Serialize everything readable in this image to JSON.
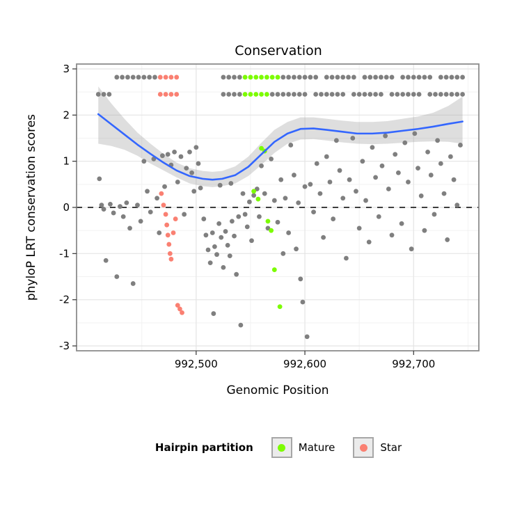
{
  "chart_data": {
    "type": "scatter",
    "title": "Conservation",
    "xlabel": "Genomic Position",
    "ylabel": "phyloP LRT conservation scores",
    "xlim": [
      992390,
      992760
    ],
    "ylim": [
      -3,
      3
    ],
    "x_ticks": [
      992500,
      992600,
      992700
    ],
    "x_tick_labels": [
      "992,500",
      "992,600",
      "992,700"
    ],
    "y_ticks": [
      -3,
      -2,
      -1,
      0,
      1,
      2,
      3
    ],
    "y_tick_labels": [
      "-3",
      "-2",
      "-1",
      "0",
      "1",
      "2",
      "3"
    ],
    "grid": {
      "major": "#E4E4E4",
      "minor": "#F2F2F2"
    },
    "panel_border": "#8C8C8C",
    "hline": {
      "y": 0,
      "style": "dashed",
      "color": "#000000"
    },
    "legend": {
      "title": "Hairpin partition",
      "entries": [
        {
          "label": "Mature",
          "color": "#7CFC00"
        },
        {
          "label": "Star",
          "color": "#FA8072"
        }
      ]
    },
    "series": [
      {
        "name": "Other",
        "color": "#7F7F7F",
        "rows": [
          {
            "y": 2.82,
            "x": [
              992427,
              992432,
              992437,
              992442,
              992447,
              992452,
              992457,
              992462,
              992525,
              992530,
              992535,
              992540,
              992580,
              992585,
              992590,
              992595,
              992600,
              992605,
              992610,
              992620,
              992625,
              992630,
              992635,
              992640,
              992645,
              992655,
              992660,
              992665,
              992670,
              992675,
              992680,
              992690,
              992695,
              992700,
              992705,
              992710,
              992715,
              992725,
              992730,
              992735,
              992740,
              992745
            ]
          },
          {
            "y": 2.45,
            "x": [
              992410,
              992415,
              992420,
              992525,
              992530,
              992535,
              992540,
              992570,
              992575,
              992580,
              992585,
              992590,
              992595,
              992600,
              992610,
              992615,
              992620,
              992625,
              992630,
              992635,
              992645,
              992650,
              992655,
              992660,
              992665,
              992670,
              992680,
              992685,
              992690,
              992695,
              992700,
              992705,
              992715,
              992720,
              992725,
              992730,
              992735,
              992740,
              992745
            ]
          }
        ],
        "points": [
          [
            992411,
            0.62
          ],
          [
            992413,
            0.05
          ],
          [
            992415,
            -0.04
          ],
          [
            992417,
            -1.15
          ],
          [
            992421,
            0.07
          ],
          [
            992424,
            -0.12
          ],
          [
            992427,
            -1.5
          ],
          [
            992430,
            0.02
          ],
          [
            992433,
            -0.2
          ],
          [
            992436,
            0.1
          ],
          [
            992439,
            -0.45
          ],
          [
            992442,
            -1.65
          ],
          [
            992446,
            0.05
          ],
          [
            992449,
            -0.3
          ],
          [
            992452,
            1.0
          ],
          [
            992455,
            0.35
          ],
          [
            992458,
            -0.1
          ],
          [
            992461,
            1.05
          ],
          [
            992464,
            0.2
          ],
          [
            992466,
            -0.55
          ],
          [
            992469,
            1.12
          ],
          [
            992471,
            0.45
          ],
          [
            992474,
            1.15
          ],
          [
            992477,
            0.92
          ],
          [
            992480,
            1.2
          ],
          [
            992483,
            0.55
          ],
          [
            992486,
            1.1
          ],
          [
            992489,
            -0.15
          ],
          [
            992491,
            0.85
          ],
          [
            992494,
            1.2
          ],
          [
            992496,
            0.75
          ],
          [
            992498,
            0.35
          ],
          [
            992500,
            1.3
          ],
          [
            992502,
            0.95
          ],
          [
            992504,
            0.42
          ],
          [
            992507,
            -0.25
          ],
          [
            992509,
            -0.6
          ],
          [
            992511,
            -0.92
          ],
          [
            992513,
            -1.2
          ],
          [
            992515,
            -0.55
          ],
          [
            992516,
            -2.3
          ],
          [
            992517,
            -0.85
          ],
          [
            992519,
            -1.02
          ],
          [
            992521,
            -0.35
          ],
          [
            992522,
            0.48
          ],
          [
            992523,
            -0.65
          ],
          [
            992525,
            -1.3
          ],
          [
            992527,
            -0.52
          ],
          [
            992529,
            -0.82
          ],
          [
            992531,
            -1.05
          ],
          [
            992532,
            0.52
          ],
          [
            992533,
            -0.3
          ],
          [
            992535,
            -0.62
          ],
          [
            992537,
            -1.45
          ],
          [
            992539,
            -0.2
          ],
          [
            992541,
            -2.55
          ],
          [
            992543,
            0.3
          ],
          [
            992545,
            -0.15
          ],
          [
            992547,
            -0.42
          ],
          [
            992549,
            0.12
          ],
          [
            992551,
            -0.72
          ],
          [
            992553,
            0.26
          ],
          [
            992556,
            0.4
          ],
          [
            992558,
            -0.2
          ],
          [
            992560,
            0.9
          ],
          [
            992563,
            0.3
          ],
          [
            992566,
            -0.45
          ],
          [
            992569,
            1.05
          ],
          [
            992572,
            0.15
          ],
          [
            992575,
            -0.32
          ],
          [
            992578,
            0.6
          ],
          [
            992580,
            -1.0
          ],
          [
            992582,
            0.2
          ],
          [
            992585,
            -0.55
          ],
          [
            992587,
            1.35
          ],
          [
            992590,
            0.7
          ],
          [
            992592,
            -0.9
          ],
          [
            992594,
            0.1
          ],
          [
            992596,
            -1.55
          ],
          [
            992598,
            -2.05
          ],
          [
            992600,
            0.45
          ],
          [
            992602,
            -2.8
          ],
          [
            992605,
            0.5
          ],
          [
            992608,
            -0.1
          ],
          [
            992611,
            0.95
          ],
          [
            992614,
            0.3
          ],
          [
            992617,
            -0.65
          ],
          [
            992620,
            1.1
          ],
          [
            992623,
            0.55
          ],
          [
            992626,
            -0.25
          ],
          [
            992629,
            1.45
          ],
          [
            992632,
            0.8
          ],
          [
            992635,
            0.2
          ],
          [
            992638,
            -1.1
          ],
          [
            992641,
            0.6
          ],
          [
            992644,
            1.5
          ],
          [
            992647,
            0.35
          ],
          [
            992650,
            -0.45
          ],
          [
            992653,
            1.0
          ],
          [
            992656,
            0.15
          ],
          [
            992659,
            -0.75
          ],
          [
            992662,
            1.3
          ],
          [
            992665,
            0.65
          ],
          [
            992668,
            -0.2
          ],
          [
            992671,
            0.9
          ],
          [
            992674,
            1.55
          ],
          [
            992677,
            0.4
          ],
          [
            992680,
            -0.6
          ],
          [
            992683,
            1.15
          ],
          [
            992686,
            0.75
          ],
          [
            992689,
            -0.35
          ],
          [
            992692,
            1.4
          ],
          [
            992695,
            0.55
          ],
          [
            992698,
            -0.9
          ],
          [
            992701,
            1.6
          ],
          [
            992704,
            0.85
          ],
          [
            992707,
            0.25
          ],
          [
            992710,
            -0.5
          ],
          [
            992713,
            1.2
          ],
          [
            992716,
            0.7
          ],
          [
            992719,
            -0.15
          ],
          [
            992722,
            1.45
          ],
          [
            992725,
            0.95
          ],
          [
            992728,
            0.3
          ],
          [
            992731,
            -0.7
          ],
          [
            992734,
            1.1
          ],
          [
            992737,
            0.6
          ],
          [
            992740,
            0.05
          ],
          [
            992743,
            1.35
          ]
        ]
      },
      {
        "name": "Mature",
        "color": "#7CFC00",
        "rows": [
          {
            "y": 2.82,
            "x": [
              992545,
              992550,
              992555,
              992560,
              992565,
              992570,
              992575
            ]
          },
          {
            "y": 2.45,
            "x": [
              992545,
              992550,
              992555,
              992560,
              992565
            ]
          }
        ],
        "points": [
          [
            992553,
            0.35
          ],
          [
            992557,
            0.18
          ],
          [
            992560,
            1.28
          ],
          [
            992563,
            1.22
          ],
          [
            992566,
            -0.3
          ],
          [
            992569,
            -0.5
          ],
          [
            992572,
            -1.35
          ],
          [
            992577,
            -2.15
          ]
        ]
      },
      {
        "name": "Star",
        "color": "#FA8072",
        "rows": [
          {
            "y": 2.82,
            "x": [
              992467,
              992472,
              992477,
              992482
            ]
          },
          {
            "y": 2.45,
            "x": [
              992467,
              992472,
              992477,
              992482
            ]
          }
        ],
        "points": [
          [
            992468,
            0.3
          ],
          [
            992470,
            0.05
          ],
          [
            992472,
            -0.15
          ],
          [
            992473,
            -0.38
          ],
          [
            992474,
            -0.6
          ],
          [
            992475,
            -0.8
          ],
          [
            992476,
            -1.0
          ],
          [
            992477,
            -1.12
          ],
          [
            992479,
            -0.55
          ],
          [
            992481,
            -0.25
          ],
          [
            992483,
            -2.12
          ],
          [
            992485,
            -2.2
          ],
          [
            992487,
            -2.28
          ]
        ]
      }
    ],
    "smooth": {
      "color": "#3366FF",
      "ribbon_color": "#A0A0A0",
      "line": [
        [
          992410,
          2.02
        ],
        [
          992422,
          1.8
        ],
        [
          992434,
          1.58
        ],
        [
          992446,
          1.36
        ],
        [
          992458,
          1.16
        ],
        [
          992470,
          0.97
        ],
        [
          992482,
          0.8
        ],
        [
          992494,
          0.68
        ],
        [
          992506,
          0.62
        ],
        [
          992515,
          0.6
        ],
        [
          992524,
          0.62
        ],
        [
          992536,
          0.7
        ],
        [
          992548,
          0.88
        ],
        [
          992560,
          1.15
        ],
        [
          992572,
          1.42
        ],
        [
          992584,
          1.6
        ],
        [
          992596,
          1.7
        ],
        [
          992608,
          1.71
        ],
        [
          992620,
          1.68
        ],
        [
          992634,
          1.64
        ],
        [
          992648,
          1.6
        ],
        [
          992662,
          1.6
        ],
        [
          992676,
          1.62
        ],
        [
          992690,
          1.66
        ],
        [
          992704,
          1.7
        ],
        [
          992718,
          1.75
        ],
        [
          992732,
          1.81
        ],
        [
          992745,
          1.86
        ]
      ],
      "ribbon": [
        [
          992410,
          1.38,
          2.62
        ],
        [
          992422,
          1.33,
          2.25
        ],
        [
          992434,
          1.25,
          1.92
        ],
        [
          992446,
          1.12,
          1.62
        ],
        [
          992458,
          0.95,
          1.38
        ],
        [
          992470,
          0.8,
          1.16
        ],
        [
          992482,
          0.65,
          0.97
        ],
        [
          992494,
          0.52,
          0.85
        ],
        [
          992506,
          0.46,
          0.79
        ],
        [
          992515,
          0.44,
          0.77
        ],
        [
          992524,
          0.46,
          0.79
        ],
        [
          992536,
          0.52,
          0.89
        ],
        [
          992548,
          0.68,
          1.1
        ],
        [
          992560,
          0.92,
          1.4
        ],
        [
          992572,
          1.18,
          1.68
        ],
        [
          992584,
          1.38,
          1.85
        ],
        [
          992596,
          1.47,
          1.95
        ],
        [
          992608,
          1.48,
          1.95
        ],
        [
          992620,
          1.45,
          1.92
        ],
        [
          992634,
          1.41,
          1.88
        ],
        [
          992648,
          1.38,
          1.85
        ],
        [
          992662,
          1.37,
          1.85
        ],
        [
          992676,
          1.38,
          1.87
        ],
        [
          992690,
          1.4,
          1.92
        ],
        [
          992704,
          1.42,
          1.97
        ],
        [
          992718,
          1.43,
          2.05
        ],
        [
          992732,
          1.42,
          2.2
        ],
        [
          992745,
          1.38,
          2.4
        ]
      ]
    }
  }
}
